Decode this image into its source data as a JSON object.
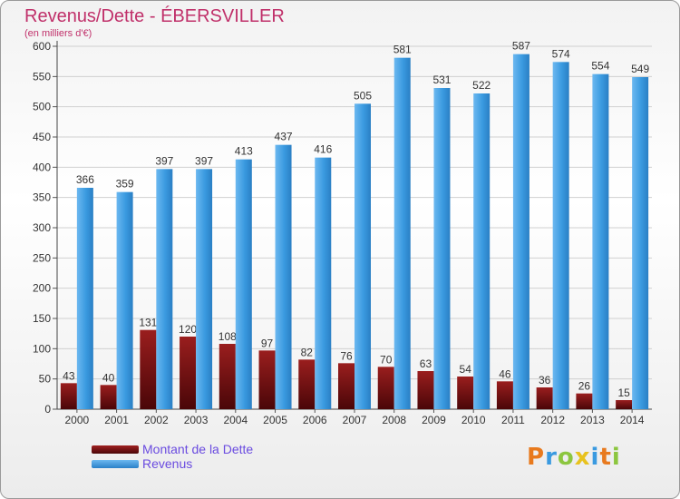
{
  "header": {
    "title": "Revenus/Dette - ÉBERSVILLER",
    "subtitle": "(en milliers d'€)"
  },
  "legend": {
    "items": [
      {
        "label": "Montant de la Dette",
        "color": "#7a0e10"
      },
      {
        "label": "Revenus",
        "color": "#3a9ae0"
      }
    ]
  },
  "logo": {
    "text": "Proxiti"
  },
  "colors": {
    "debt": "#7a0e10",
    "revenue": "#3a9ae0",
    "grid": "#d0d0d0"
  },
  "chart_data": {
    "type": "bar",
    "title": "Revenus/Dette - ÉBERSVILLER",
    "ylabel": "(en milliers d'€)",
    "xlabel": "",
    "categories": [
      "2000",
      "2001",
      "2002",
      "2003",
      "2004",
      "2005",
      "2006",
      "2007",
      "2008",
      "2009",
      "2010",
      "2011",
      "2012",
      "2013",
      "2014"
    ],
    "series": [
      {
        "name": "Montant de la Dette",
        "values": [
          43,
          40,
          131,
          120,
          108,
          97,
          82,
          76,
          70,
          63,
          54,
          46,
          36,
          26,
          15
        ]
      },
      {
        "name": "Revenus",
        "values": [
          366,
          359,
          397,
          397,
          413,
          437,
          416,
          505,
          581,
          531,
          522,
          587,
          574,
          554,
          549
        ]
      }
    ],
    "ylim": [
      0,
      600
    ],
    "yticks": [
      0,
      50,
      100,
      150,
      200,
      250,
      300,
      350,
      400,
      450,
      500,
      550,
      600
    ],
    "grid": true,
    "legend_position": "bottom-left"
  }
}
